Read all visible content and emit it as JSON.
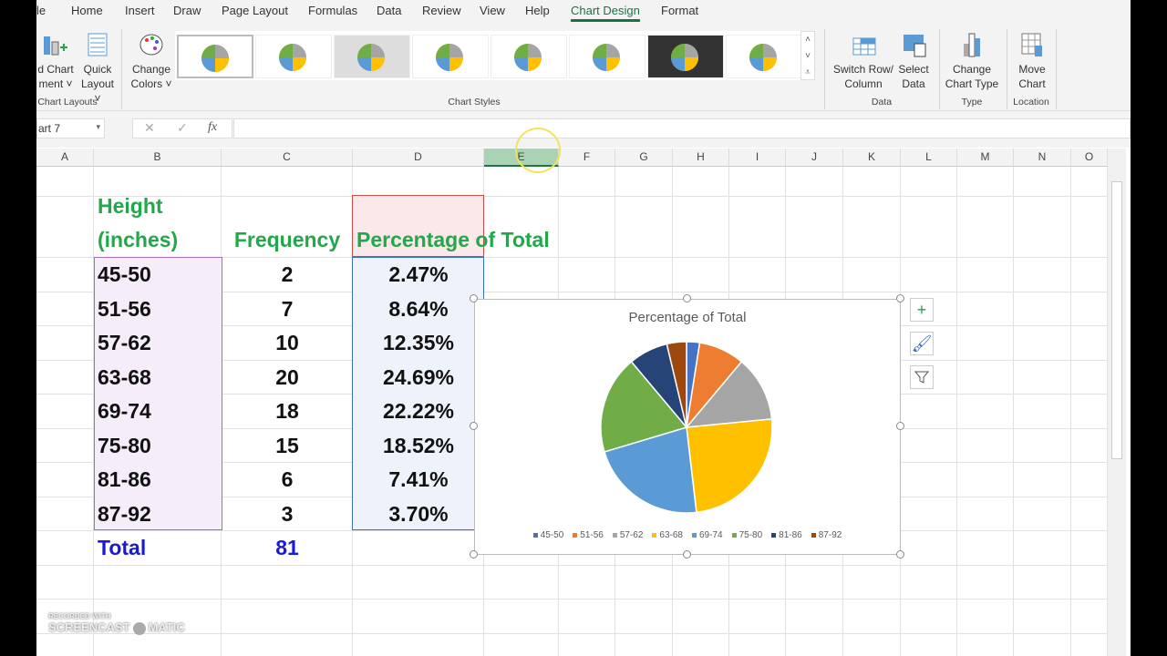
{
  "ribbon": {
    "tabs": [
      "le",
      "Home",
      "Insert",
      "Draw",
      "Page Layout",
      "Formulas",
      "Data",
      "Review",
      "View",
      "Help",
      "Chart Design",
      "Format"
    ],
    "add_chart_element": [
      "d Chart",
      "ment ˅"
    ],
    "quick_layout": [
      "Quick",
      "Layout ˅"
    ],
    "change_colors": [
      "Change",
      "Colors ˅"
    ],
    "switch_row_col": [
      "Switch Row/",
      "Column"
    ],
    "select_data": [
      "Select",
      "Data"
    ],
    "change_chart_type": [
      "Change",
      "Chart Type"
    ],
    "move_chart": [
      "Move",
      "Chart"
    ],
    "groups": {
      "chart_layouts": "Chart Layouts",
      "chart_styles": "Chart Styles",
      "data": "Data",
      "type": "Type",
      "location": "Location"
    }
  },
  "formula_bar": {
    "name_box": "art 7",
    "fx": "fx",
    "value": ""
  },
  "columns": [
    "A",
    "B",
    "C",
    "D",
    "E",
    "F",
    "G",
    "H",
    "I",
    "J",
    "K",
    "L",
    "M",
    "N",
    "O"
  ],
  "table": {
    "header_height": [
      "Height",
      "(inches)"
    ],
    "header_frequency": "Frequency",
    "header_percentage": "Percentage of Total",
    "rows": [
      {
        "range": "45-50",
        "freq": "2",
        "pct": "2.47%"
      },
      {
        "range": "51-56",
        "freq": "7",
        "pct": "8.64%"
      },
      {
        "range": "57-62",
        "freq": "10",
        "pct": "12.35%"
      },
      {
        "range": "63-68",
        "freq": "20",
        "pct": "24.69%"
      },
      {
        "range": "69-74",
        "freq": "18",
        "pct": "22.22%"
      },
      {
        "range": "75-80",
        "freq": "15",
        "pct": "18.52%"
      },
      {
        "range": "81-86",
        "freq": "6",
        "pct": "7.41%"
      },
      {
        "range": "87-92",
        "freq": "3",
        "pct": "3.70%"
      }
    ],
    "total_label": "Total",
    "total_value": "81"
  },
  "chart_data": {
    "type": "pie",
    "title": "Percentage of Total",
    "categories": [
      "45-50",
      "51-56",
      "57-62",
      "63-68",
      "69-74",
      "75-80",
      "81-86",
      "87-92"
    ],
    "values": [
      2.47,
      8.64,
      12.35,
      24.69,
      22.22,
      18.52,
      7.41,
      3.7
    ],
    "colors": [
      "#4472c4",
      "#ed7d31",
      "#a5a5a5",
      "#ffc000",
      "#5b9bd5",
      "#70ad47",
      "#264478",
      "#9e480e"
    ],
    "legend": "bottom"
  },
  "watermark": [
    "RECORDED WITH",
    "SCREENCAST",
    "MATIC"
  ]
}
